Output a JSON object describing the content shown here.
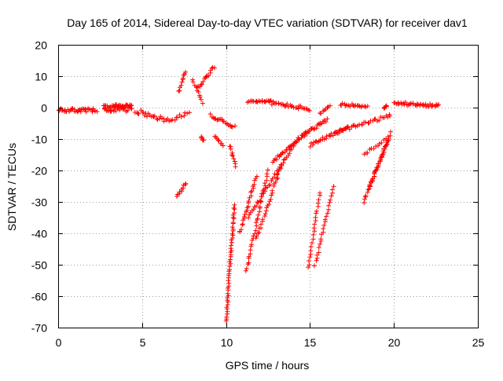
{
  "chart_data": {
    "type": "scatter",
    "title": "Day 165 of 2014, Sidereal Day-to-day VTEC variation (SDTVAR) for receiver dav1",
    "xlabel": "GPS time / hours",
    "ylabel": "SDTVAR / TECUs",
    "xlim": [
      0,
      25
    ],
    "ylim": [
      -70,
      20
    ],
    "xticks": [
      "0",
      "5",
      "10",
      "15",
      "20",
      "25"
    ],
    "yticks": [
      "20",
      "10",
      "0",
      "-10",
      "-20",
      "-30",
      "-40",
      "-50",
      "-60",
      "-70"
    ],
    "grid": true,
    "marker": "+",
    "color": "#ff0000",
    "segments": [
      {
        "name": "baseline-0-2.5",
        "x0": 0.0,
        "y0": -0.8,
        "x1": 2.3,
        "y1": -0.9,
        "jitter": 1.2,
        "density": 40
      },
      {
        "name": "cluster-2.5-4.5",
        "x0": 2.7,
        "y0": -0.5,
        "x1": 4.4,
        "y1": 0.0,
        "jitter": 2.5,
        "density": 60
      },
      {
        "name": "decline-4.5-6.5",
        "x0": 4.6,
        "y0": -1.0,
        "x1": 6.5,
        "y1": -4.0,
        "jitter": 1.5,
        "density": 25
      },
      {
        "name": "dip-7",
        "x0": 6.6,
        "y0": -4.0,
        "x1": 7.8,
        "y1": -2.0,
        "jitter": 1.5,
        "density": 12
      },
      {
        "name": "rise-7.2",
        "x0": 7.2,
        "y0": 5.0,
        "x1": 7.6,
        "y1": 11.5,
        "jitter": 0.7,
        "density": 10
      },
      {
        "name": "rise-8.8",
        "x0": 8.3,
        "y0": 6.0,
        "x1": 9.3,
        "y1": 13.0,
        "jitter": 1.0,
        "density": 16
      },
      {
        "name": "arc-8.5",
        "x0": 8.0,
        "y0": 9.0,
        "x1": 8.6,
        "y1": 1.5,
        "jitter": 0.7,
        "density": 10
      },
      {
        "name": "arc-9.3",
        "x0": 9.1,
        "y0": -2.5,
        "x1": 10.5,
        "y1": -6.0,
        "jitter": 1.0,
        "density": 20
      },
      {
        "name": "drop-10.5",
        "x0": 10.2,
        "y0": -12.0,
        "x1": 10.6,
        "y1": -18.5,
        "jitter": 0.7,
        "density": 10
      },
      {
        "name": "low-7",
        "x0": 7.1,
        "y0": -28.0,
        "x1": 7.6,
        "y1": -24.0,
        "jitter": 0.7,
        "density": 10
      },
      {
        "name": "low-9",
        "x0": 8.5,
        "y0": -9.5,
        "x1": 8.7,
        "y1": -10.5,
        "jitter": 0.6,
        "density": 6
      },
      {
        "name": "mid-9.5",
        "x0": 9.3,
        "y0": -9.0,
        "x1": 9.8,
        "y1": -12.0,
        "jitter": 0.6,
        "density": 8
      },
      {
        "name": "plateau-11.5",
        "x0": 11.3,
        "y0": 2.0,
        "x1": 12.7,
        "y1": 2.0,
        "jitter": 0.6,
        "density": 20
      },
      {
        "name": "decline-12.7",
        "x0": 12.7,
        "y0": 1.5,
        "x1": 15.0,
        "y1": -0.5,
        "jitter": 1.2,
        "density": 30
      },
      {
        "name": "slope-10.8",
        "x0": 10.8,
        "y0": -40.0,
        "x1": 11.8,
        "y1": -22.0,
        "jitter": 1.0,
        "density": 25
      },
      {
        "name": "slope-11.6",
        "x0": 11.3,
        "y0": -35.0,
        "x1": 14.3,
        "y1": -10.0,
        "jitter": 1.0,
        "density": 40
      },
      {
        "name": "slope-12",
        "x0": 11.8,
        "y0": -42.0,
        "x1": 13.3,
        "y1": -18.0,
        "jitter": 1.0,
        "density": 30
      },
      {
        "name": "slope-12.8",
        "x0": 12.8,
        "y0": -17.0,
        "x1": 14.8,
        "y1": -8.0,
        "jitter": 1.0,
        "density": 30
      },
      {
        "name": "drop-10",
        "x0": 10.0,
        "y0": -68.0,
        "x1": 10.5,
        "y1": -31.0,
        "jitter": 0.5,
        "density": 50
      },
      {
        "name": "drop-11.3",
        "x0": 11.2,
        "y0": -52.0,
        "x1": 12.5,
        "y1": -20.0,
        "jitter": 0.8,
        "density": 35
      },
      {
        "name": "step-14.5",
        "x0": 14.5,
        "y0": -9.0,
        "x1": 16.0,
        "y1": -4.0,
        "jitter": 1.0,
        "density": 25
      },
      {
        "name": "rise-15",
        "x0": 15.0,
        "y0": -12.0,
        "x1": 17.3,
        "y1": -6.0,
        "jitter": 1.0,
        "density": 30
      },
      {
        "name": "drop-15",
        "x0": 14.9,
        "y0": -51.0,
        "x1": 15.6,
        "y1": -27.0,
        "jitter": 0.6,
        "density": 22
      },
      {
        "name": "drop-15.3",
        "x0": 15.3,
        "y0": -50.0,
        "x1": 16.4,
        "y1": -25.0,
        "jitter": 0.6,
        "density": 25
      },
      {
        "name": "slope-15.6",
        "x0": 15.6,
        "y0": -2.0,
        "x1": 16.2,
        "y1": 0.5,
        "jitter": 0.6,
        "density": 8
      },
      {
        "name": "curve-16",
        "x0": 16.5,
        "y0": -8.0,
        "x1": 19.8,
        "y1": -2.5,
        "jitter": 1.0,
        "density": 35
      },
      {
        "name": "plateau-17",
        "x0": 16.8,
        "y0": 1.0,
        "x1": 18.4,
        "y1": 0.5,
        "jitter": 0.8,
        "density": 20
      },
      {
        "name": "drop-18.2",
        "x0": 18.2,
        "y0": -30.0,
        "x1": 19.8,
        "y1": -8.0,
        "jitter": 0.7,
        "density": 30
      },
      {
        "name": "drop-18.6",
        "x0": 18.5,
        "y0": -26.0,
        "x1": 19.7,
        "y1": -10.0,
        "jitter": 0.7,
        "density": 25
      },
      {
        "name": "slope-18.2",
        "x0": 18.2,
        "y0": -15.0,
        "x1": 19.5,
        "y1": -10.0,
        "jitter": 0.8,
        "density": 12
      },
      {
        "name": "flat-19.4",
        "x0": 19.4,
        "y0": 0.0,
        "x1": 19.6,
        "y1": 0.5,
        "jitter": 0.5,
        "density": 6
      },
      {
        "name": "tail-20",
        "x0": 20.0,
        "y0": 1.5,
        "x1": 22.7,
        "y1": 0.5,
        "jitter": 1.0,
        "density": 40
      }
    ]
  }
}
